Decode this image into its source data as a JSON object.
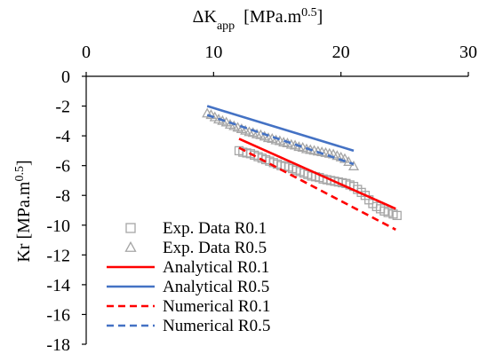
{
  "chart_data": {
    "type": "scatter",
    "x_axis": {
      "label_main": "ΔK",
      "label_sub": "app",
      "label_units_prefix": "  [MPa.m",
      "label_units_sup": "0.5",
      "label_units_suffix": "]",
      "range": [
        0,
        30
      ],
      "ticks": [
        0,
        10,
        20,
        30
      ],
      "tick_labels": [
        "0",
        "10",
        "20",
        "30"
      ],
      "position": "top"
    },
    "y_axis": {
      "label_main": "Kr [MPa.m",
      "label_sup": "0.5",
      "label_suffix": "]",
      "range": [
        -18,
        0
      ],
      "ticks": [
        0,
        -2,
        -4,
        -6,
        -8,
        -10,
        -12,
        -14,
        -16,
        -18
      ],
      "tick_labels": [
        "0",
        "-2",
        "-4",
        "-6",
        "-8",
        "-10",
        "-12",
        "-14",
        "-16",
        "-18"
      ]
    },
    "grid": false,
    "legend_position": "bottom-left",
    "series": [
      {
        "name": "Exp. Data R0.1",
        "kind": "scatter",
        "marker": "square",
        "color": "#a6a6a6",
        "x": [
          12.0,
          12.3,
          12.6,
          12.9,
          13.2,
          13.5,
          13.8,
          14.1,
          14.4,
          14.7,
          15.0,
          15.3,
          15.6,
          15.9,
          16.2,
          16.5,
          16.8,
          17.1,
          17.4,
          17.7,
          18.0,
          18.3,
          18.6,
          18.9,
          19.2,
          19.5,
          19.8,
          20.1,
          20.4,
          20.7,
          21.0,
          21.3,
          21.6,
          21.9,
          22.2,
          22.5,
          22.8,
          23.1,
          23.4,
          23.7,
          24.1,
          24.4
        ],
        "y": [
          -5.0,
          -5.1,
          -5.15,
          -5.2,
          -5.3,
          -5.4,
          -5.5,
          -5.6,
          -5.7,
          -5.8,
          -5.9,
          -6.0,
          -6.05,
          -6.1,
          -6.2,
          -6.3,
          -6.4,
          -6.5,
          -6.6,
          -6.7,
          -6.75,
          -6.8,
          -6.9,
          -6.95,
          -7.0,
          -7.05,
          -7.1,
          -7.15,
          -7.2,
          -7.3,
          -7.4,
          -7.6,
          -7.8,
          -8.0,
          -8.3,
          -8.55,
          -8.75,
          -8.9,
          -9.05,
          -9.15,
          -9.25,
          -9.35
        ]
      },
      {
        "name": "Exp. Data R0.5",
        "kind": "scatter",
        "marker": "triangle",
        "color": "#a6a6a6",
        "x": [
          9.5,
          9.8,
          10.1,
          10.4,
          10.7,
          11.0,
          11.3,
          11.6,
          11.9,
          12.2,
          12.5,
          12.8,
          13.1,
          13.4,
          13.7,
          14.0,
          14.3,
          14.6,
          14.9,
          15.2,
          15.5,
          15.8,
          16.1,
          16.4,
          16.7,
          17.0,
          17.3,
          17.6,
          17.9,
          18.2,
          18.5,
          18.8,
          19.1,
          19.4,
          19.7,
          20.0,
          20.3,
          20.6,
          21.0
        ],
        "y": [
          -2.5,
          -2.6,
          -2.75,
          -2.9,
          -3.0,
          -3.1,
          -3.25,
          -3.35,
          -3.45,
          -3.55,
          -3.65,
          -3.75,
          -3.8,
          -3.9,
          -3.95,
          -4.05,
          -4.15,
          -4.2,
          -4.3,
          -4.35,
          -4.45,
          -4.5,
          -4.6,
          -4.65,
          -4.75,
          -4.8,
          -4.9,
          -4.95,
          -5.0,
          -5.05,
          -5.1,
          -5.15,
          -5.2,
          -5.25,
          -5.35,
          -5.45,
          -5.55,
          -5.75,
          -6.05
        ]
      },
      {
        "name": "Analytical R0.1",
        "kind": "line",
        "dash": "solid",
        "color": "#ff0000",
        "x": [
          12,
          24.3
        ],
        "y": [
          -4.2,
          -8.9
        ]
      },
      {
        "name": "Analytical R0.5",
        "kind": "line",
        "dash": "solid",
        "color": "#4472c4",
        "x": [
          9.5,
          21
        ],
        "y": [
          -2.0,
          -5.0
        ]
      },
      {
        "name": "Numerical R0.1",
        "kind": "line",
        "dash": "dashed",
        "color": "#ff0000",
        "x": [
          12,
          24.3
        ],
        "y": [
          -4.8,
          -10.3
        ]
      },
      {
        "name": "Numerical R0.5",
        "kind": "line",
        "dash": "dashed",
        "color": "#4472c4",
        "x": [
          9.5,
          21
        ],
        "y": [
          -2.6,
          -5.9
        ]
      }
    ]
  }
}
